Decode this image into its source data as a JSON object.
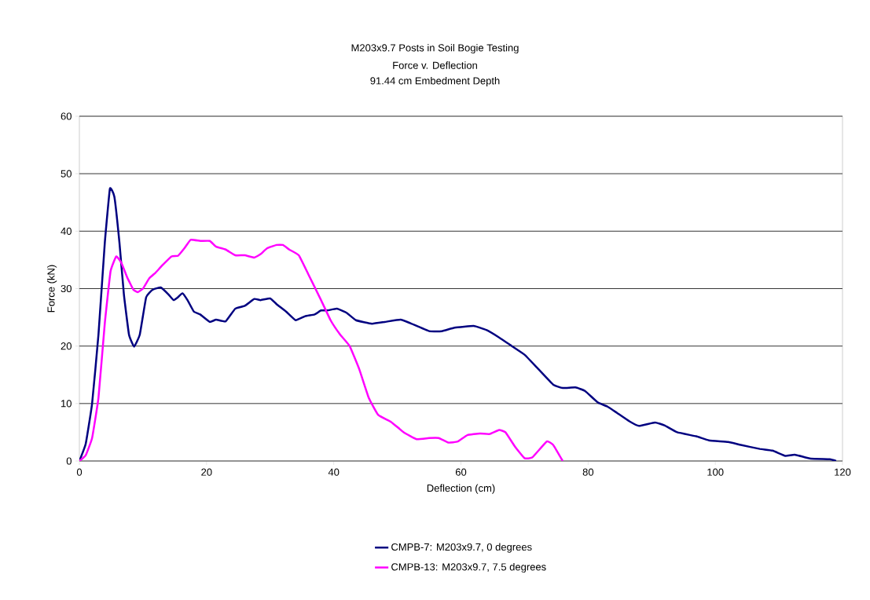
{
  "chart_data": {
    "type": "line",
    "title": "M203x9.7 Posts in Soil Bogie Testing",
    "subtitle": "Force v. Deflection",
    "annotations": [
      "91.44 cm Embedment Depth"
    ],
    "xlabel": "Deflection (cm)",
    "ylabel": "Force (kN)",
    "xlim": [
      0,
      120
    ],
    "xticks": [
      0,
      20,
      40,
      60,
      80,
      100,
      120
    ],
    "ylim": [
      0,
      60
    ],
    "yticks": [
      0,
      10,
      20,
      30,
      40,
      50,
      60
    ],
    "grid": "y",
    "legend": "bottom",
    "marker": "none",
    "line_style": "solid",
    "series": [
      {
        "name": "CMPB-7: M203x9.7, 0 degrees",
        "color": "#000080",
        "x": [
          0,
          1,
          2,
          3,
          4,
          4.8,
          5.5,
          6.3,
          7,
          7.8,
          8.6,
          9.5,
          10.5,
          11.5,
          12.8,
          14,
          14.8,
          15.5,
          16.2,
          17,
          18,
          19,
          20.5,
          21.5,
          23,
          24.5,
          26,
          27.5,
          28.5,
          30,
          31,
          32.5,
          34,
          35.5,
          37,
          38,
          39,
          40.5,
          42,
          43.5,
          46,
          48,
          50.5,
          52,
          55,
          57,
          59,
          62,
          64,
          66,
          68,
          70,
          72,
          74.5,
          76,
          78,
          79.5,
          81.5,
          83,
          84.5,
          86.5,
          88,
          90.5,
          92,
          94,
          97,
          99,
          102,
          104,
          107,
          109,
          111,
          112.5,
          115,
          118,
          119
        ],
        "values": [
          0,
          3,
          10,
          22,
          38,
          47.4,
          46,
          38,
          29,
          22,
          19.9,
          22,
          28.5,
          29.8,
          30.2,
          29,
          28,
          28.5,
          29.2,
          28,
          26,
          25.5,
          24.2,
          24.6,
          24.3,
          26.5,
          27,
          28.2,
          28,
          28.3,
          27.3,
          26,
          24.5,
          25.2,
          25.5,
          26.2,
          26.2,
          26.5,
          25.8,
          24.5,
          23.9,
          24.2,
          24.6,
          24,
          22.6,
          22.6,
          23.2,
          23.5,
          22.8,
          21.5,
          20,
          18.5,
          16.2,
          13.3,
          12.7,
          12.8,
          12.2,
          10.2,
          9.5,
          8.4,
          6.9,
          6.1,
          6.7,
          6.2,
          5,
          4.3,
          3.6,
          3.3,
          2.8,
          2.1,
          1.8,
          0.9,
          1.1,
          0.4,
          0.3,
          0
        ]
      },
      {
        "name": "CMPB-13: M203x9.7, 7.5 degrees",
        "color": "#ff00ff",
        "x": [
          0,
          1,
          2,
          3,
          4,
          4.9,
          5.8,
          6.6,
          7.5,
          8.5,
          9.2,
          10,
          11,
          12,
          13,
          14.5,
          15.5,
          16.5,
          17.5,
          19,
          20.5,
          21.5,
          23,
          24.5,
          26,
          27.5,
          28.5,
          29.5,
          31,
          32,
          33,
          34.5,
          36,
          38,
          39.5,
          41,
          42.5,
          44,
          45.5,
          47,
          49,
          51,
          53,
          55,
          56.5,
          58,
          59.5,
          61,
          63,
          64.5,
          66,
          67,
          68.5,
          70,
          71.2,
          73.5,
          74.5,
          76
        ],
        "values": [
          0,
          1,
          4,
          11,
          24,
          33,
          35.6,
          34.5,
          32,
          29.8,
          29.4,
          30,
          31.8,
          32.8,
          34,
          35.6,
          35.7,
          37,
          38.5,
          38.3,
          38.3,
          37.3,
          36.8,
          35.8,
          35.8,
          35.4,
          36,
          37,
          37.6,
          37.6,
          36.8,
          35.8,
          32.5,
          28,
          24.5,
          22,
          20,
          16,
          11,
          8,
          6.8,
          5,
          3.8,
          4,
          4,
          3.2,
          3.4,
          4.5,
          4.8,
          4.7,
          5.4,
          5,
          2.5,
          0.5,
          0.6,
          3.4,
          2.8,
          0
        ]
      }
    ]
  }
}
